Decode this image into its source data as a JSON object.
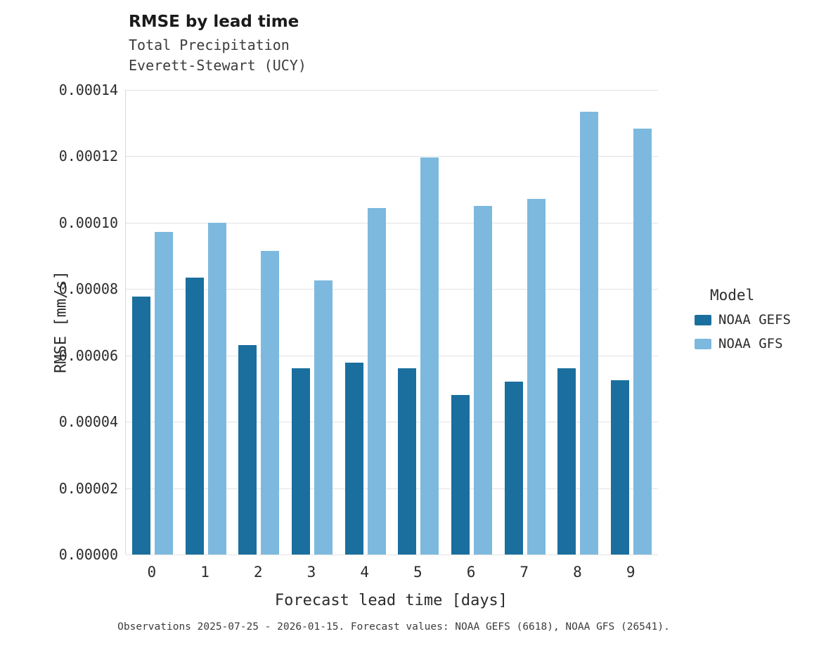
{
  "header": {
    "title": "RMSE by lead time",
    "subtitle1": "Total Precipitation",
    "subtitle2": "Everett-Stewart (UCY)"
  },
  "chart_data": {
    "type": "bar",
    "title": "RMSE by lead time",
    "subtitle": [
      "Total Precipitation",
      "Everett-Stewart (UCY)"
    ],
    "categories": [
      "0",
      "1",
      "2",
      "3",
      "4",
      "5",
      "6",
      "7",
      "8",
      "9"
    ],
    "series": [
      {
        "name": "NOAA GEFS",
        "color": "#1a6f9e",
        "values": [
          7.78e-05,
          8.35e-05,
          6.32e-05,
          5.61e-05,
          5.78e-05,
          5.61e-05,
          4.81e-05,
          5.22e-05,
          5.61e-05,
          5.26e-05
        ]
      },
      {
        "name": "NOAA GFS",
        "color": "#7db9de",
        "values": [
          9.73e-05,
          0.0001,
          9.16e-05,
          8.26e-05,
          0.0001045,
          0.0001196,
          0.0001051,
          0.0001072,
          0.0001335,
          0.0001283
        ]
      }
    ],
    "xlabel": "Forecast lead time [days]",
    "ylabel": "RMSE [mm/s]",
    "ylim": [
      0,
      0.00014
    ],
    "ytick_step": 2e-05,
    "ytick_decimals": 5,
    "grid": true,
    "legend_title": "Model",
    "legend_position": "right"
  },
  "caption": "Observations 2025-07-25 - 2026-01-15. Forecast values: NOAA GEFS (6618), NOAA GFS (26541)."
}
